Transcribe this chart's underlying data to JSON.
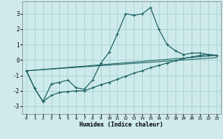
{
  "xlabel": "Humidex (Indice chaleur)",
  "bg_color": "#ceeaea",
  "grid_color": "#aad4d4",
  "line_color": "#1a6060",
  "xlim": [
    -0.5,
    23.5
  ],
  "ylim": [
    -3.5,
    3.8
  ],
  "yticks": [
    -3,
    -2,
    -1,
    0,
    1,
    2,
    3
  ],
  "xticks": [
    0,
    1,
    2,
    3,
    4,
    5,
    6,
    7,
    8,
    9,
    10,
    11,
    12,
    13,
    14,
    15,
    16,
    17,
    18,
    19,
    20,
    21,
    22,
    23
  ],
  "line1_x": [
    0,
    1,
    2,
    3,
    4,
    5,
    6,
    7,
    8,
    9,
    10,
    11,
    12,
    13,
    14,
    15,
    16,
    17,
    18,
    19,
    20,
    21,
    22,
    23
  ],
  "line1_y": [
    -0.7,
    -1.85,
    -2.7,
    -1.55,
    -1.45,
    -1.3,
    -1.8,
    -1.9,
    -1.3,
    -0.2,
    0.5,
    1.7,
    3.0,
    2.9,
    3.0,
    3.4,
    2.0,
    1.0,
    0.6,
    0.35,
    0.45,
    0.45,
    0.35,
    0.3
  ],
  "line2_x": [
    0,
    1,
    2,
    3,
    4,
    5,
    6,
    7,
    8,
    9,
    10,
    11,
    12,
    13,
    14,
    15,
    16,
    17,
    18,
    19,
    20,
    21,
    22,
    23
  ],
  "line2_y": [
    -0.7,
    -1.85,
    -2.7,
    -2.3,
    -2.1,
    -2.05,
    -2.0,
    -2.0,
    -1.8,
    -1.6,
    -1.45,
    -1.25,
    -1.05,
    -0.85,
    -0.7,
    -0.5,
    -0.35,
    -0.2,
    -0.05,
    0.1,
    0.2,
    0.3,
    0.35,
    0.3
  ],
  "line3_x": [
    0,
    23
  ],
  "line3_y": [
    -0.7,
    0.3
  ],
  "line4_x": [
    0,
    23
  ],
  "line4_y": [
    -0.7,
    0.15
  ],
  "marker_size": 2.5
}
